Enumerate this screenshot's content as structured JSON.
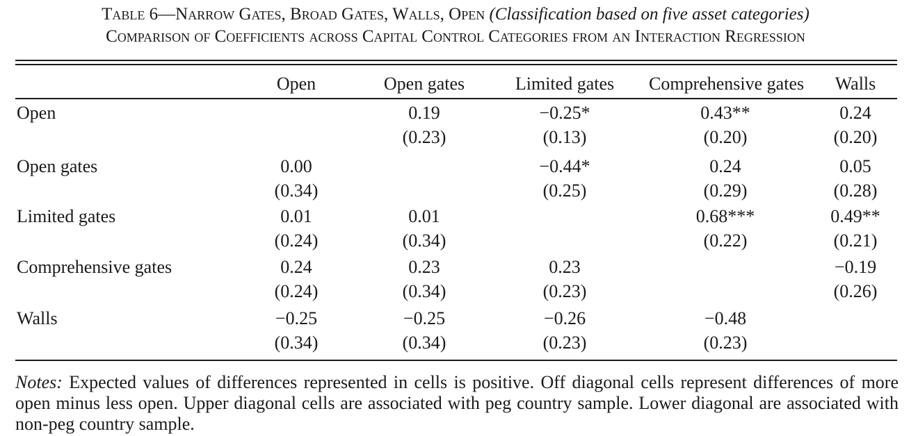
{
  "title": {
    "line1_main": "Table 6—Narrow Gates, Broad Gates, Walls, Open ",
    "line1_italic": "(Classification based on five asset categories)",
    "line2": "Comparison of Coefficients across Capital Control Categories from an Interaction Regression"
  },
  "columns": [
    "Open",
    "Open gates",
    "Limited gates",
    "Comprehensive gates",
    "Walls"
  ],
  "rows": [
    {
      "label": "Open",
      "cells": [
        null,
        {
          "coef": "0.19",
          "se": "(0.23)"
        },
        {
          "coef": "−0.25*",
          "se": "(0.13)"
        },
        {
          "coef": "0.43**",
          "se": "(0.20)"
        },
        {
          "coef": "0.24",
          "se": "(0.20)"
        }
      ]
    },
    {
      "label": "Open gates",
      "cells": [
        {
          "coef": "0.00",
          "se": "(0.34)"
        },
        null,
        {
          "coef": "−0.44*",
          "se": "(0.25)"
        },
        {
          "coef": "0.24",
          "se": "(0.29)"
        },
        {
          "coef": "0.05",
          "se": "(0.28)"
        }
      ]
    },
    {
      "label": "Limited gates",
      "cells": [
        {
          "coef": "0.01",
          "se": "(0.24)"
        },
        {
          "coef": "0.01",
          "se": "(0.34)"
        },
        null,
        {
          "coef": "0.68***",
          "se": "(0.22)"
        },
        {
          "coef": "0.49**",
          "se": "(0.21)"
        }
      ]
    },
    {
      "label": "Comprehensive gates",
      "cells": [
        {
          "coef": "0.24",
          "se": "(0.24)"
        },
        {
          "coef": "0.23",
          "se": "(0.34)"
        },
        {
          "coef": "0.23",
          "se": "(0.23)"
        },
        null,
        {
          "coef": "−0.19",
          "se": "(0.26)"
        }
      ]
    },
    {
      "label": "Walls",
      "cells": [
        {
          "coef": "−0.25",
          "se": "(0.34)"
        },
        {
          "coef": "−0.25",
          "se": "(0.34)"
        },
        {
          "coef": "−0.26",
          "se": "(0.23)"
        },
        {
          "coef": "−0.48",
          "se": "(0.23)"
        },
        null
      ]
    }
  ],
  "notes": {
    "label": "Notes:",
    "text": " Expected values of differences represented in cells is positive. Off diagonal cells represent differences of more open minus less open. Upper diagonal cells are associated with peg country sample. Lower diagonal are associated with non-peg country sample."
  }
}
